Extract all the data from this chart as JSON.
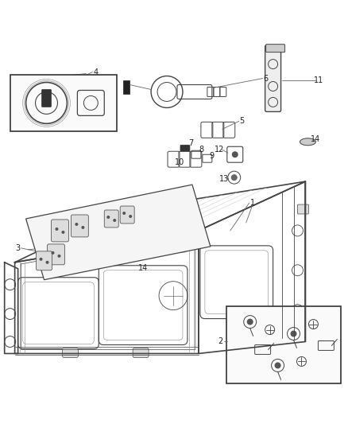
{
  "bg_color": "#ffffff",
  "fig_width": 4.38,
  "fig_height": 5.33,
  "dpi": 100,
  "lc": "#444444",
  "lc_light": "#888888",
  "anno_color": "#666666",
  "anno_fs": 7.0
}
